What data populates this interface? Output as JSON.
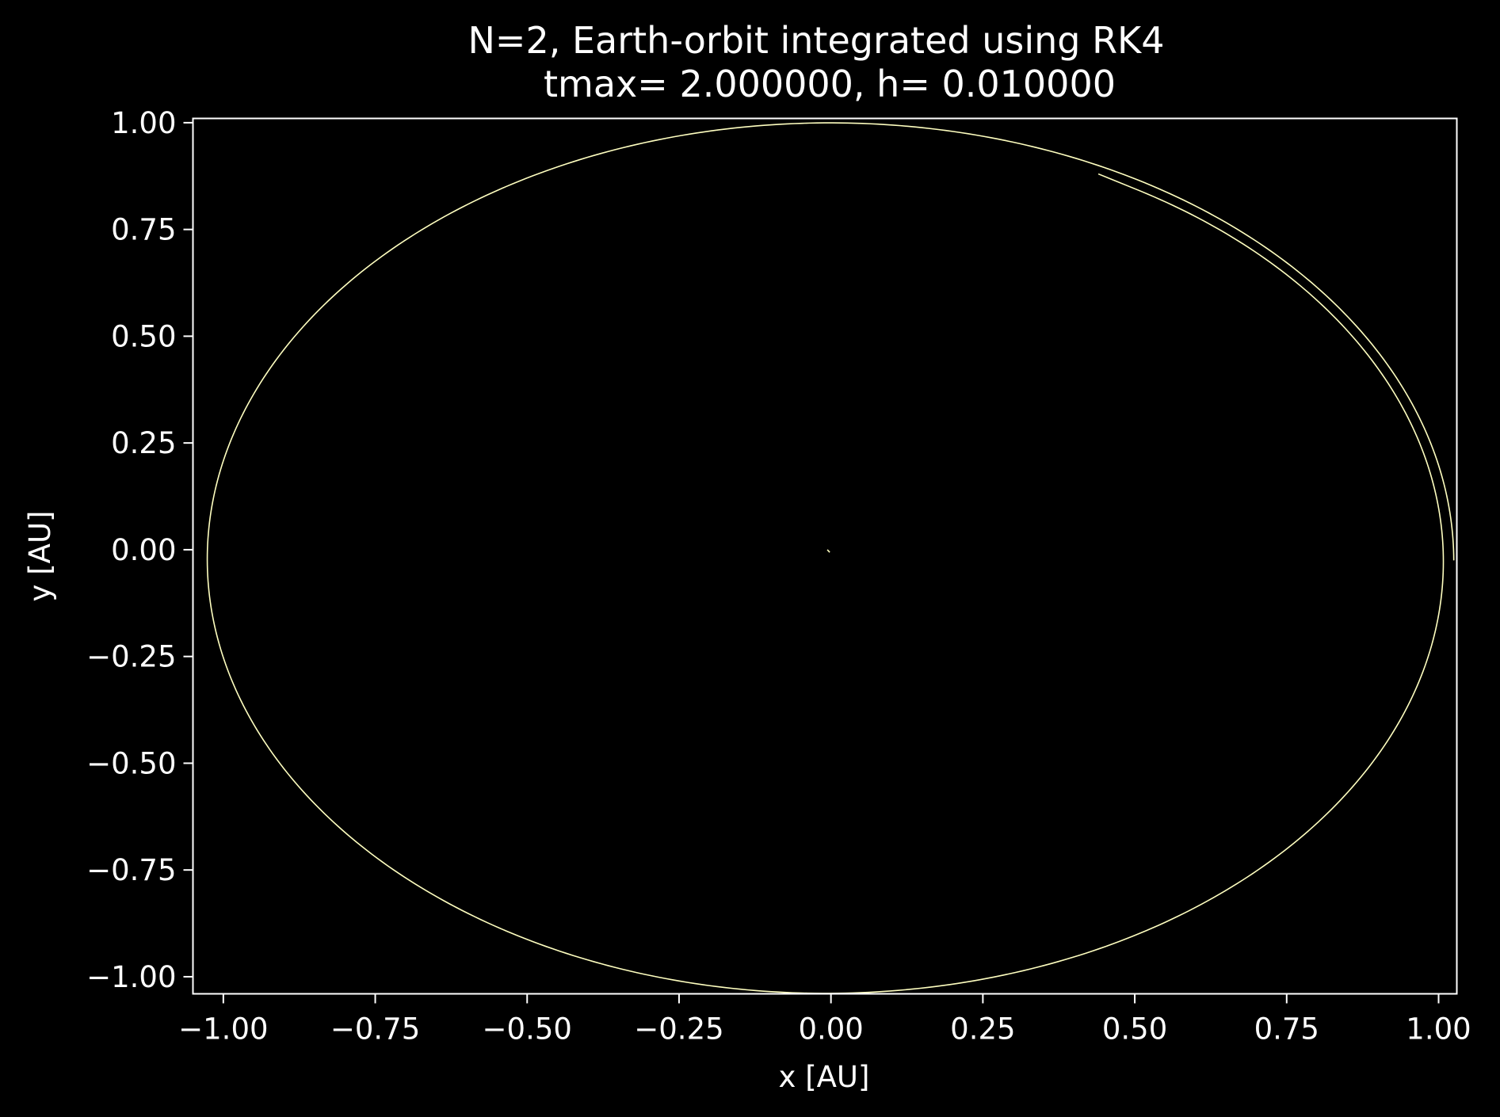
{
  "chart_data": {
    "type": "line",
    "title": "N=2, Earth-orbit integrated using RK4",
    "subtitle": "tmax= 2.000000, h= 0.010000",
    "xlabel": "x [AU]",
    "ylabel": "y [AU]",
    "xlim": [
      -1.05,
      1.03
    ],
    "ylim": [
      -1.04,
      1.01
    ],
    "xticks": [
      -1.0,
      -0.75,
      -0.5,
      -0.25,
      0.0,
      0.25,
      0.5,
      0.75,
      1.0
    ],
    "xtick_labels": [
      "−1.00",
      "−0.75",
      "−0.50",
      "−0.25",
      "0.00",
      "0.25",
      "0.50",
      "0.75",
      "1.00"
    ],
    "yticks": [
      1.0,
      0.75,
      0.5,
      0.25,
      0.0,
      -0.25,
      -0.5,
      -0.75,
      -1.0
    ],
    "ytick_labels": [
      "1.00",
      "0.75",
      "0.50",
      "0.25",
      "0.00",
      "−0.25",
      "−0.50",
      "−0.75",
      "−1.00"
    ],
    "grid": false,
    "series": [
      {
        "color": "#ffffc0",
        "orbit": {
          "center": [
            -0.005,
            -0.025
          ],
          "radius_x_start": 1.03,
          "radius_x_end": 1.01,
          "radius_y_start": 1.03,
          "radius_y_end": 1.005,
          "start_angle_deg": 0,
          "end_angle_deg": 420,
          "end_point": [
            0.44,
            0.88
          ]
        }
      },
      {
        "color": "#ffffc0",
        "x": [
          -0.006,
          -0.002
        ],
        "y": [
          0.0,
          -0.006
        ]
      }
    ]
  },
  "colors": {
    "background": "#000000",
    "axes": "#ffffff",
    "orbit": "#ffffc0"
  }
}
